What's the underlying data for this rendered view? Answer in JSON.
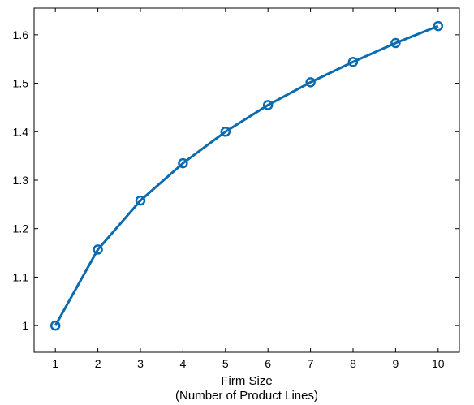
{
  "chart_data": {
    "type": "line",
    "title": "",
    "xlabel": "Firm Size",
    "xlabel_line2": "(Number of Product Lines)",
    "ylabel": "",
    "xlim": [
      0.5,
      10.5
    ],
    "ylim": [
      0.945,
      1.655
    ],
    "xticks": [
      1,
      2,
      3,
      4,
      5,
      6,
      7,
      8,
      9,
      10
    ],
    "yticks": [
      1,
      1.1,
      1.2,
      1.3,
      1.4,
      1.5,
      1.6
    ],
    "ytick_labels": [
      "1",
      "1.1",
      "1.2",
      "1.3",
      "1.4",
      "1.5",
      "1.6"
    ],
    "grid": false,
    "series": [
      {
        "color": "#0a6bb0",
        "marker": "circle",
        "x": [
          1,
          2,
          3,
          4,
          5,
          6,
          7,
          8,
          9,
          10
        ],
        "y": [
          1.0,
          1.157,
          1.258,
          1.335,
          1.4,
          1.455,
          1.502,
          1.544,
          1.583,
          1.618
        ]
      }
    ]
  }
}
